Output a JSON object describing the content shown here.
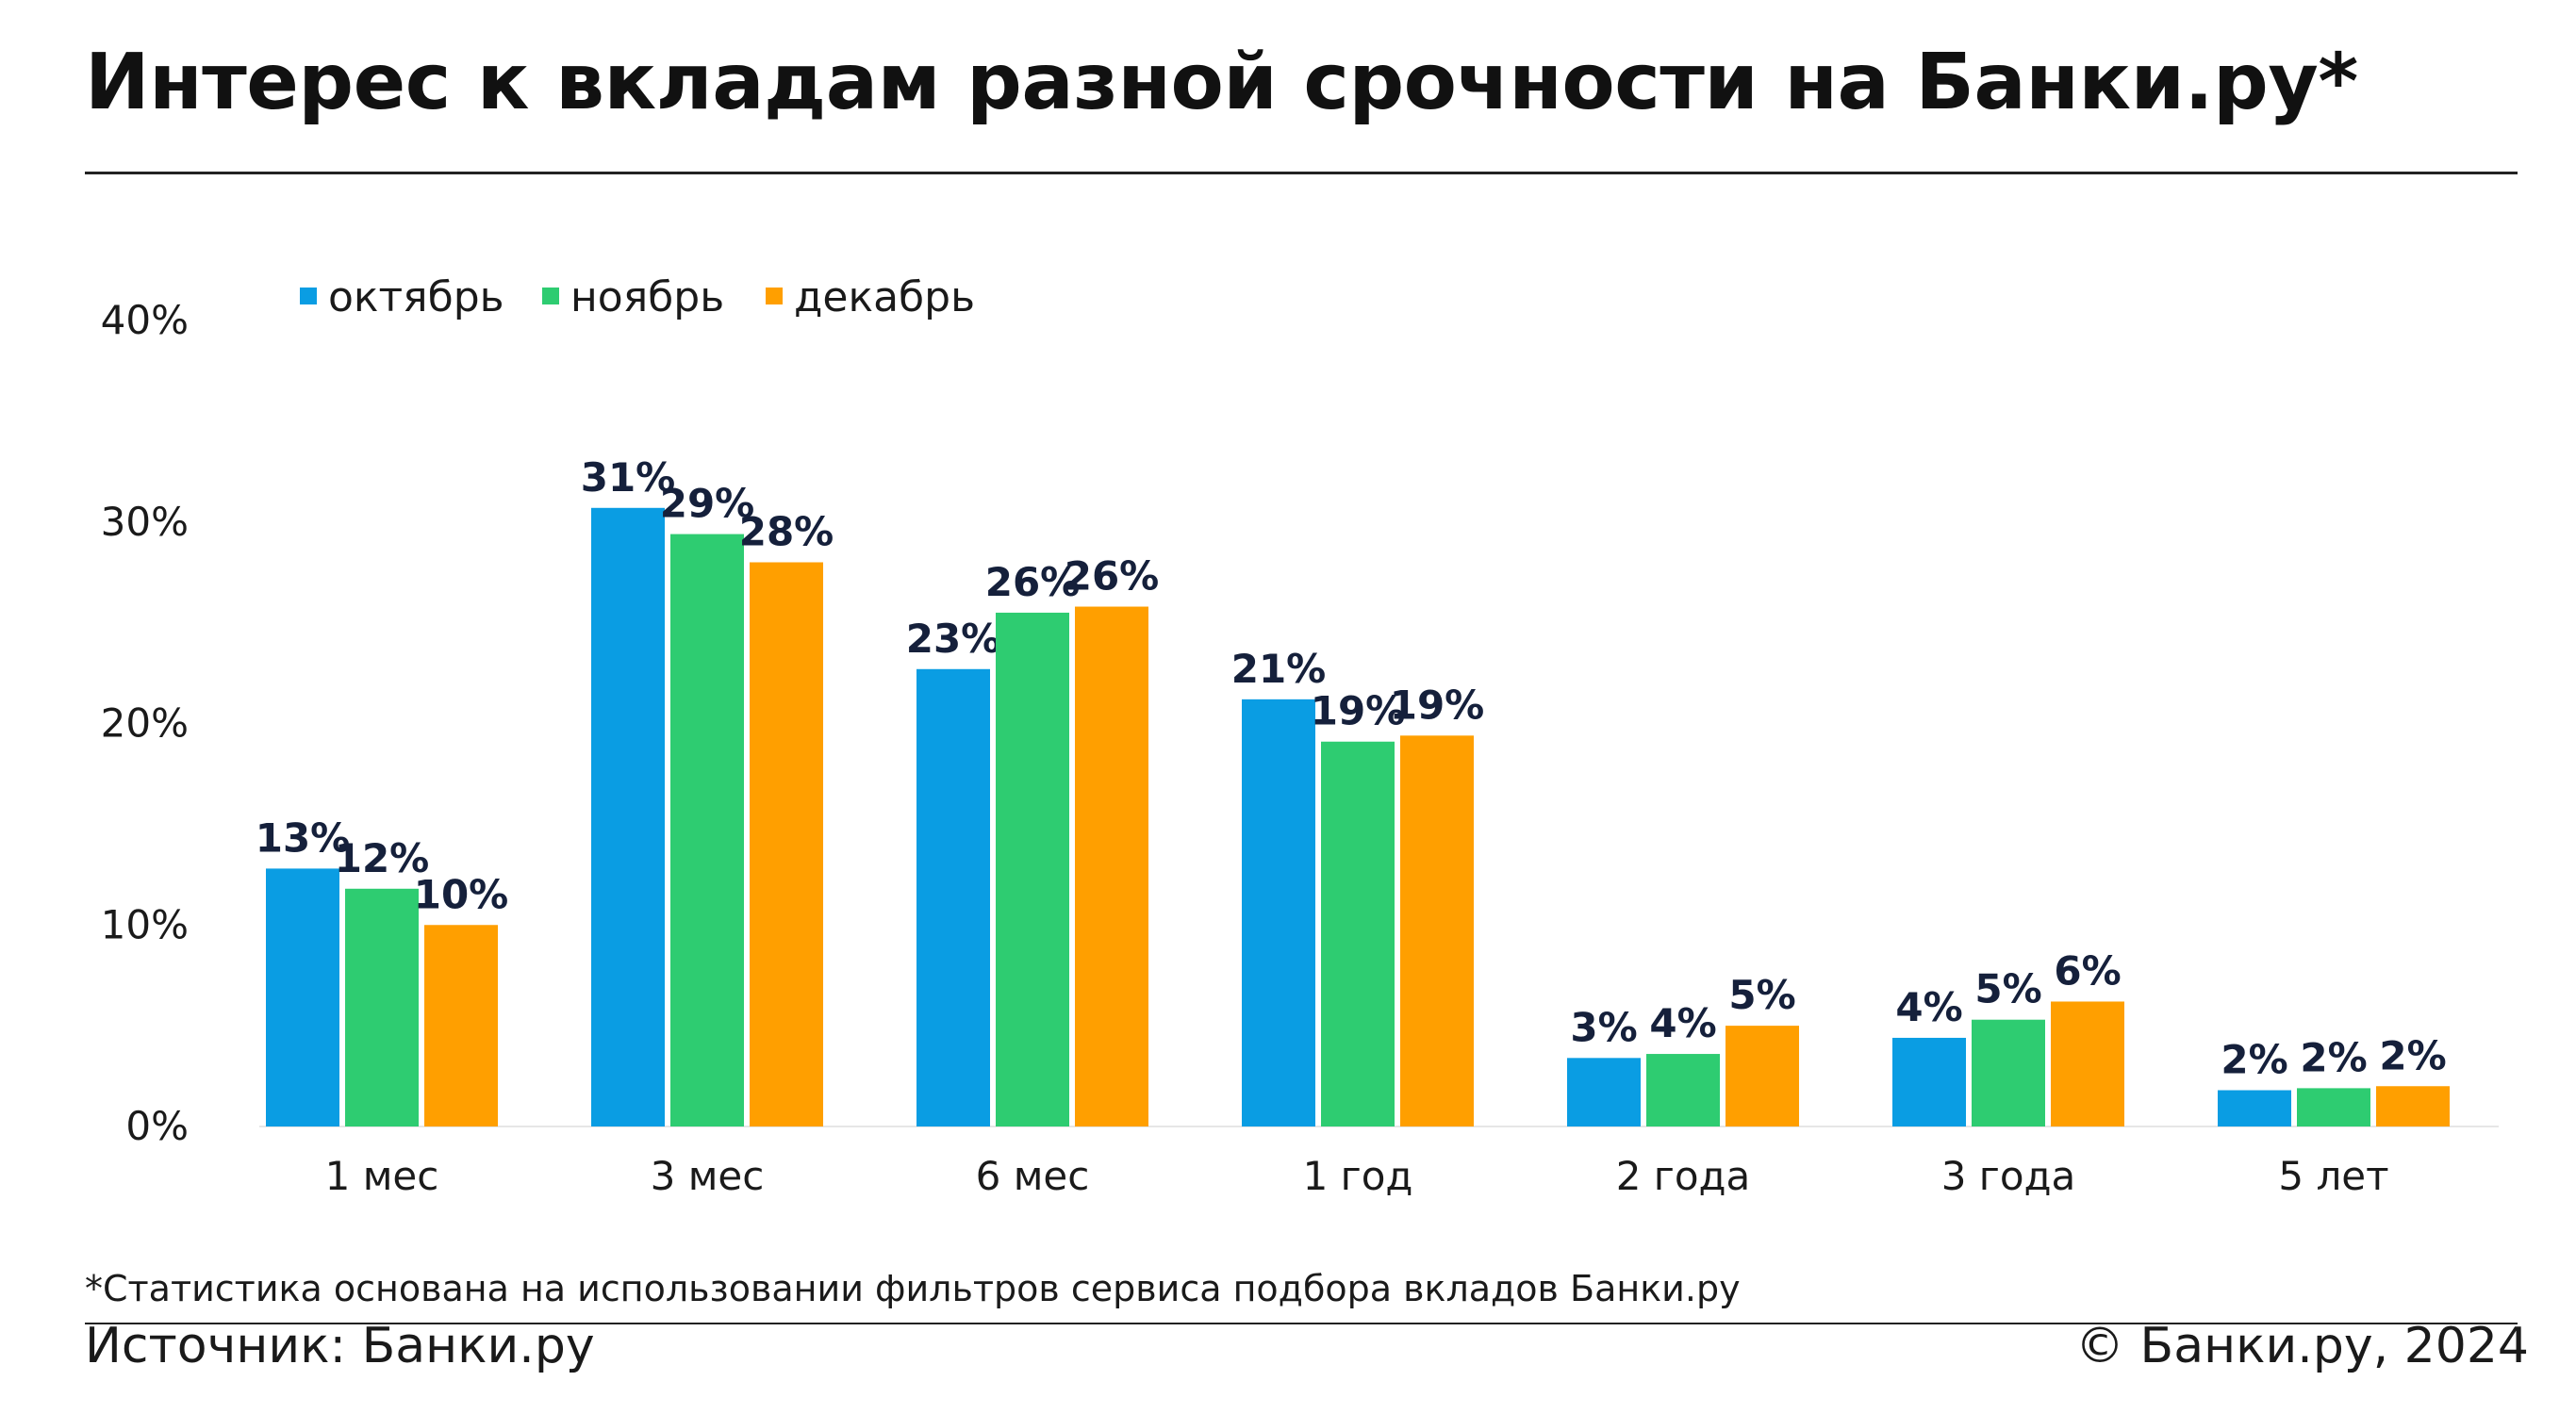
{
  "header": {
    "title": "Интерес к вкладам разной срочности на Банки.ру*"
  },
  "footer": {
    "footnote": "*Статистика основана на использовании фильтров сервиса подбора вкладов Банки.ру",
    "source": "Источник: Банки.ру",
    "copyright": "© Банки.ру, 2024"
  },
  "chart_data": {
    "type": "bar",
    "title": "Интерес к вкладам разной срочности на Банки.ру*",
    "xlabel": "",
    "ylabel": "",
    "ylim": [
      0,
      40
    ],
    "yticks": [
      0,
      10,
      20,
      30,
      40
    ],
    "ytick_labels": [
      "0%",
      "10%",
      "20%",
      "30%",
      "40%"
    ],
    "grid": false,
    "legend_position": "top-left",
    "categories": [
      "1 мес",
      "3 мес",
      "6 мес",
      "1 год",
      "2 года",
      "3 года",
      "5 лет"
    ],
    "series": [
      {
        "name": "октябрь",
        "color": "#0a9de3",
        "values": [
          12.8,
          30.7,
          22.7,
          21.2,
          3.4,
          4.4,
          1.8
        ],
        "labels": [
          "13%",
          "31%",
          "23%",
          "21%",
          "3%",
          "4%",
          "2%"
        ]
      },
      {
        "name": "ноябрь",
        "color": "#2ecc71",
        "values": [
          11.8,
          29.4,
          25.5,
          19.1,
          3.6,
          5.3,
          1.9
        ],
        "labels": [
          "12%",
          "29%",
          "26%",
          "19%",
          "4%",
          "5%",
          "2%"
        ]
      },
      {
        "name": "декабрь",
        "color": "#ff9f00",
        "values": [
          10.0,
          28.0,
          25.8,
          19.4,
          5.0,
          6.2,
          2.0
        ],
        "labels": [
          "10%",
          "28%",
          "26%",
          "19%",
          "5%",
          "6%",
          "2%"
        ]
      }
    ]
  }
}
